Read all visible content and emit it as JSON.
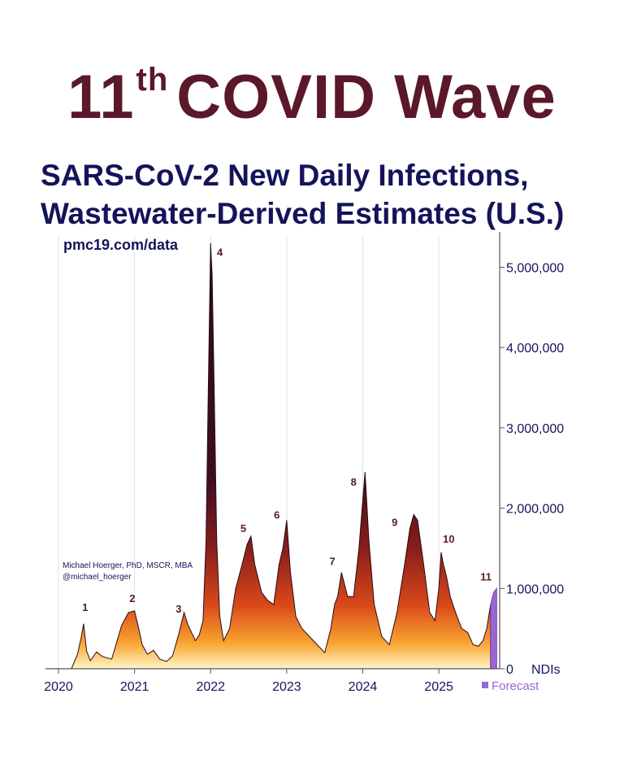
{
  "headline": {
    "number": "11",
    "suffix": "th",
    "text": "COVID Wave"
  },
  "subtitle": {
    "line1": "SARS-CoV-2 New Daily Infections,",
    "line2": "Wastewater-Derived Estimates (U.S.)"
  },
  "source_url": "pmc19.com/data",
  "credit": {
    "line1": "Michael Hoerger, PhD, MSCR, MBA",
    "line2": "@michael_hoerger"
  },
  "colors": {
    "headline": "#5a1828",
    "title": "#14145a",
    "wave_label": "#5a1828",
    "forecast": "#9a66d0",
    "curve_top": "#3a0f1e",
    "curve_mid": "#c43b1a",
    "curve_bottom": "#fff3b0"
  },
  "chart_data": {
    "type": "area",
    "title": "SARS-CoV-2 New Daily Infections, Wastewater-Derived Estimates (U.S.)",
    "xlabel": "",
    "ylabel": "NDIs",
    "xlim": [
      2020.0,
      2025.8
    ],
    "ylim": [
      0,
      5400000
    ],
    "x_ticks": [
      2020,
      2021,
      2022,
      2023,
      2024,
      2025
    ],
    "x_tick_labels": [
      "2020",
      "2021",
      "2022",
      "2023",
      "2024",
      "2025"
    ],
    "y_ticks": [
      0,
      1000000,
      2000000,
      3000000,
      4000000,
      5000000
    ],
    "y_tick_labels": [
      "0",
      "1,000,000",
      "2,000,000",
      "3,000,000",
      "4,000,000",
      "5,000,000"
    ],
    "y_unit_label": "NDIs",
    "grid": "vertical",
    "series": [
      {
        "name": "New Daily Infections",
        "x": [
          2020.0,
          2020.17,
          2020.25,
          2020.3,
          2020.33,
          2020.37,
          2020.42,
          2020.5,
          2020.58,
          2020.7,
          2020.83,
          2020.92,
          2021.0,
          2021.05,
          2021.1,
          2021.17,
          2021.25,
          2021.33,
          2021.42,
          2021.5,
          2021.58,
          2021.65,
          2021.7,
          2021.75,
          2021.8,
          2021.85,
          2021.9,
          2021.94,
          2021.97,
          2022.0,
          2022.02,
          2022.05,
          2022.08,
          2022.12,
          2022.17,
          2022.25,
          2022.33,
          2022.4,
          2022.48,
          2022.53,
          2022.58,
          2022.67,
          2022.75,
          2022.83,
          2022.9,
          2022.95,
          2023.0,
          2023.05,
          2023.12,
          2023.2,
          2023.3,
          2023.4,
          2023.5,
          2023.58,
          2023.63,
          2023.67,
          2023.72,
          2023.8,
          2023.88,
          2023.95,
          2024.0,
          2024.03,
          2024.08,
          2024.15,
          2024.25,
          2024.35,
          2024.45,
          2024.55,
          2024.62,
          2024.67,
          2024.72,
          2024.8,
          2024.88,
          2024.95,
          2025.0,
          2025.03,
          2025.06,
          2025.1,
          2025.15,
          2025.22,
          2025.3,
          2025.38,
          2025.45,
          2025.52,
          2025.58,
          2025.63,
          2025.68
        ],
        "values": [
          0,
          0,
          180000,
          400000,
          560000,
          220000,
          100000,
          210000,
          150000,
          120000,
          540000,
          700000,
          720000,
          520000,
          300000,
          180000,
          230000,
          120000,
          90000,
          160000,
          430000,
          700000,
          550000,
          450000,
          350000,
          420000,
          600000,
          1600000,
          3500000,
          5300000,
          4900000,
          3300000,
          1600000,
          650000,
          350000,
          500000,
          1000000,
          1250000,
          1550000,
          1650000,
          1300000,
          950000,
          850000,
          800000,
          1300000,
          1500000,
          1850000,
          1200000,
          650000,
          500000,
          400000,
          300000,
          200000,
          500000,
          800000,
          900000,
          1200000,
          900000,
          900000,
          1500000,
          2100000,
          2450000,
          1600000,
          800000,
          400000,
          300000,
          700000,
          1300000,
          1750000,
          1920000,
          1850000,
          1300000,
          700000,
          600000,
          1000000,
          1450000,
          1300000,
          1150000,
          900000,
          700000,
          500000,
          450000,
          300000,
          280000,
          350000,
          500000,
          800000
        ]
      },
      {
        "name": "Forecast",
        "x": [
          2025.68,
          2025.72,
          2025.76
        ],
        "values": [
          800000,
          950000,
          1000000
        ]
      }
    ],
    "wave_labels": [
      {
        "label": "1",
        "x": 2020.35,
        "y": 720000
      },
      {
        "label": "2",
        "x": 2020.97,
        "y": 830000
      },
      {
        "label": "3",
        "x": 2021.58,
        "y": 700000
      },
      {
        "label": "4",
        "x": 2022.12,
        "y": 5140000
      },
      {
        "label": "5",
        "x": 2022.43,
        "y": 1700000
      },
      {
        "label": "6",
        "x": 2022.87,
        "y": 1870000
      },
      {
        "label": "7",
        "x": 2023.6,
        "y": 1290000
      },
      {
        "label": "8",
        "x": 2023.88,
        "y": 2280000
      },
      {
        "label": "9",
        "x": 2024.42,
        "y": 1780000
      },
      {
        "label": "10",
        "x": 2025.13,
        "y": 1570000
      },
      {
        "label": "11",
        "x": 2025.62,
        "y": 1100000
      }
    ],
    "legend": {
      "label": "Forecast",
      "placement": "bottom-right"
    }
  }
}
